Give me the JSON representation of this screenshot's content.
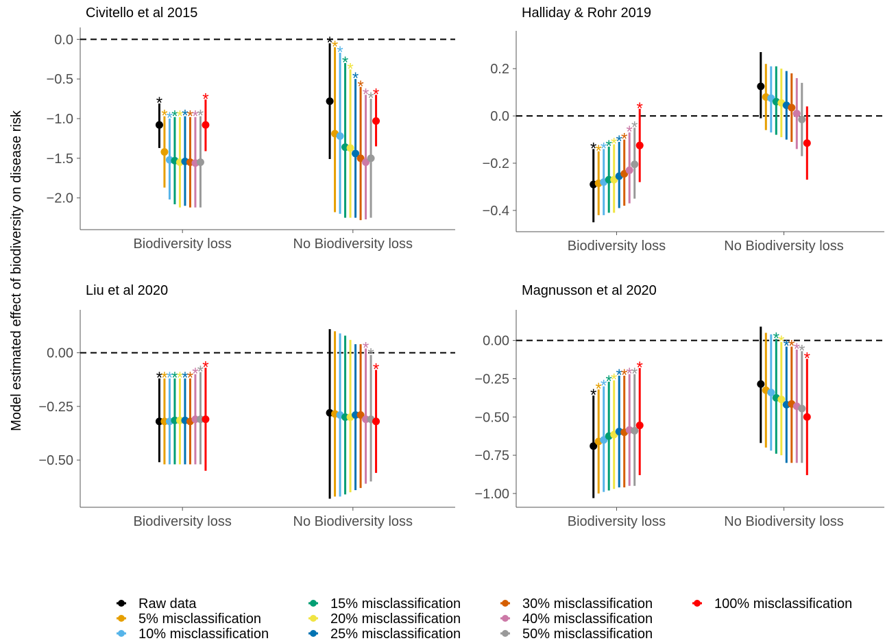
{
  "y_label": "Model estimated effect of biodiversity on disease risk",
  "legend": [
    {
      "name": "Raw data",
      "color": "#000000"
    },
    {
      "name": "5% misclassification",
      "color": "#E69F00"
    },
    {
      "name": "10% misclassification",
      "color": "#56B4E9"
    },
    {
      "name": "15% misclassification",
      "color": "#009E73"
    },
    {
      "name": "20% misclassification",
      "color": "#F0E442"
    },
    {
      "name": "25% misclassification",
      "color": "#0072B2"
    },
    {
      "name": "30% misclassification",
      "color": "#D55E00"
    },
    {
      "name": "40% misclassification",
      "color": "#CC79A7"
    },
    {
      "name": "50% misclassification",
      "color": "#999999"
    },
    {
      "name": "100% misclassification",
      "color": "#FF0000"
    }
  ],
  "chart_data": [
    {
      "type": "pointrange",
      "title": "Civitello et al 2015",
      "categories": [
        "Biodiversity loss",
        "No Biodiversity loss"
      ],
      "hline": 0,
      "ylim": [
        -2.4,
        0.15
      ],
      "yticks": [
        {
          "value": 0,
          "label": "0.0"
        },
        {
          "value": -0.5,
          "label": "−0.5"
        },
        {
          "value": -1,
          "label": "−1.0"
        },
        {
          "value": -1.5,
          "label": "−1.5"
        },
        {
          "value": -2,
          "label": "−2.0"
        }
      ],
      "series": [
        {
          "values": [
            -1.08,
            -0.78
          ],
          "lower": [
            -1.37,
            -1.51
          ],
          "upper": [
            -0.81,
            -0.05
          ],
          "labels": [
            "*",
            "*"
          ]
        },
        {
          "values": [
            -1.42,
            -1.19
          ],
          "lower": [
            -1.87,
            -2.18
          ],
          "upper": [
            -0.97,
            -0.1
          ],
          "labels": [
            "*",
            "*"
          ]
        },
        {
          "values": [
            -1.52,
            -1.22
          ],
          "lower": [
            -2.02,
            -2.2
          ],
          "upper": [
            -1.0,
            -0.17
          ],
          "labels": [
            "*",
            "*"
          ]
        },
        {
          "values": [
            -1.53,
            -1.36
          ],
          "lower": [
            -2.08,
            -2.25
          ],
          "upper": [
            -0.98,
            -0.3
          ],
          "labels": [
            "*",
            "*"
          ]
        },
        {
          "values": [
            -1.55,
            -1.37
          ],
          "lower": [
            -2.12,
            -2.25
          ],
          "upper": [
            -0.98,
            -0.38
          ],
          "labels": [
            "*",
            "*"
          ]
        },
        {
          "values": [
            -1.54,
            -1.44
          ],
          "lower": [
            -2.1,
            -2.25
          ],
          "upper": [
            -0.97,
            -0.5
          ],
          "labels": [
            "*",
            "*"
          ]
        },
        {
          "values": [
            -1.55,
            -1.5
          ],
          "lower": [
            -2.12,
            -2.28
          ],
          "upper": [
            -0.98,
            -0.6
          ],
          "labels": [
            "*",
            "*"
          ]
        },
        {
          "values": [
            -1.56,
            -1.55
          ],
          "lower": [
            -2.12,
            -2.27
          ],
          "upper": [
            -0.98,
            -0.7
          ],
          "labels": [
            "*",
            "*"
          ]
        },
        {
          "values": [
            -1.55,
            -1.5
          ],
          "lower": [
            -2.12,
            -2.25
          ],
          "upper": [
            -0.97,
            -0.75
          ],
          "labels": [
            "*",
            "*"
          ]
        },
        {
          "values": [
            -1.08,
            -1.03
          ],
          "lower": [
            -1.41,
            -1.35
          ],
          "upper": [
            -0.76,
            -0.7
          ],
          "labels": [
            "*",
            "*"
          ]
        }
      ]
    },
    {
      "type": "pointrange",
      "title": "Halliday & Rohr 2019",
      "categories": [
        "Biodiversity loss",
        "No Biodiversity loss"
      ],
      "hline": 0,
      "ylim": [
        -0.49,
        0.36
      ],
      "yticks": [
        0.2,
        {
          "value": 0,
          "label": "0.0"
        },
        {
          "value": -0.2,
          "label": "−0.2"
        },
        {
          "value": -0.4,
          "label": "−0.4"
        }
      ],
      "series": [
        {
          "values": [
            -0.29,
            0.125
          ],
          "lower": [
            -0.45,
            -0.01
          ],
          "upper": [
            -0.14,
            0.27
          ],
          "labels": [
            "*",
            null
          ]
        },
        {
          "values": [
            -0.285,
            0.08
          ],
          "lower": [
            -0.42,
            -0.06
          ],
          "upper": [
            -0.15,
            0.22
          ],
          "labels": [
            "*",
            null
          ]
        },
        {
          "values": [
            -0.28,
            0.075
          ],
          "lower": [
            -0.42,
            -0.07
          ],
          "upper": [
            -0.14,
            0.21
          ],
          "labels": [
            "*",
            null
          ]
        },
        {
          "values": [
            -0.27,
            0.06
          ],
          "lower": [
            -0.41,
            -0.08
          ],
          "upper": [
            -0.13,
            0.21
          ],
          "labels": [
            "*",
            null
          ]
        },
        {
          "values": [
            -0.27,
            0.055
          ],
          "lower": [
            -0.41,
            -0.09
          ],
          "upper": [
            -0.12,
            0.2
          ],
          "labels": [
            "*",
            null
          ]
        },
        {
          "values": [
            -0.255,
            0.045
          ],
          "lower": [
            -0.39,
            -0.1
          ],
          "upper": [
            -0.11,
            0.19
          ],
          "labels": [
            "*",
            null
          ]
        },
        {
          "values": [
            -0.245,
            0.035
          ],
          "lower": [
            -0.38,
            -0.11
          ],
          "upper": [
            -0.1,
            0.18
          ],
          "labels": [
            "*",
            null
          ]
        },
        {
          "values": [
            -0.23,
            0.01
          ],
          "lower": [
            -0.37,
            -0.14
          ],
          "upper": [
            -0.07,
            0.16
          ],
          "labels": [
            "*",
            null
          ]
        },
        {
          "values": [
            -0.205,
            -0.015
          ],
          "lower": [
            -0.35,
            -0.17
          ],
          "upper": [
            -0.05,
            0.14
          ],
          "labels": [
            "*",
            null
          ]
        },
        {
          "values": [
            -0.125,
            -0.115
          ],
          "lower": [
            -0.28,
            -0.27
          ],
          "upper": [
            0.03,
            0.04
          ],
          "labels": [
            "*",
            null
          ]
        }
      ]
    },
    {
      "type": "pointrange",
      "title": "Liu et al 2020",
      "categories": [
        "Biodiversity loss",
        "No Biodiversity loss"
      ],
      "hline": 0,
      "ylim": [
        -0.72,
        0.2
      ],
      "yticks": [
        {
          "value": 0,
          "label": "0.00"
        },
        {
          "value": -0.25,
          "label": "−0.25"
        },
        {
          "value": -0.5,
          "label": "−0.50"
        }
      ],
      "series": [
        {
          "values": [
            -0.32,
            -0.28
          ],
          "lower": [
            -0.51,
            -0.68
          ],
          "upper": [
            -0.12,
            0.11
          ],
          "labels": [
            "*",
            null
          ]
        },
        {
          "values": [
            -0.32,
            -0.285
          ],
          "lower": [
            -0.52,
            -0.67
          ],
          "upper": [
            -0.12,
            0.1
          ],
          "labels": [
            "*",
            null
          ]
        },
        {
          "values": [
            -0.32,
            -0.29
          ],
          "lower": [
            -0.52,
            -0.67
          ],
          "upper": [
            -0.12,
            0.09
          ],
          "labels": [
            "*",
            null
          ]
        },
        {
          "values": [
            -0.315,
            -0.3
          ],
          "lower": [
            -0.52,
            -0.66
          ],
          "upper": [
            -0.12,
            0.08
          ],
          "labels": [
            "*",
            null
          ]
        },
        {
          "values": [
            -0.315,
            -0.3
          ],
          "lower": [
            -0.52,
            -0.65
          ],
          "upper": [
            -0.12,
            0.06
          ],
          "labels": [
            "*",
            null
          ]
        },
        {
          "values": [
            -0.315,
            -0.29
          ],
          "lower": [
            -0.52,
            -0.64
          ],
          "upper": [
            -0.12,
            0.04
          ],
          "labels": [
            "*",
            null
          ]
        },
        {
          "values": [
            -0.32,
            -0.29
          ],
          "lower": [
            -0.52,
            -0.63
          ],
          "upper": [
            -0.12,
            0.04
          ],
          "labels": [
            "*",
            null
          ]
        },
        {
          "values": [
            -0.31,
            -0.31
          ],
          "lower": [
            -0.52,
            -0.61
          ],
          "upper": [
            -0.1,
            0.02
          ],
          "labels": [
            "*",
            "*"
          ]
        },
        {
          "values": [
            -0.31,
            -0.31
          ],
          "lower": [
            -0.52,
            -0.6
          ],
          "upper": [
            -0.09,
            -0.01
          ],
          "labels": [
            "*",
            "*"
          ]
        },
        {
          "values": [
            -0.31,
            -0.32
          ],
          "lower": [
            -0.55,
            -0.56
          ],
          "upper": [
            -0.07,
            -0.08
          ],
          "labels": [
            "*",
            "*"
          ]
        }
      ]
    },
    {
      "type": "pointrange",
      "title": "Magnusson et al 2020",
      "categories": [
        "Biodiversity loss",
        "No Biodiversity loss"
      ],
      "hline": 0,
      "ylim": [
        -1.09,
        0.2
      ],
      "yticks": [
        {
          "value": 0,
          "label": "0.00"
        },
        {
          "value": -0.25,
          "label": "−0.25"
        },
        {
          "value": -0.5,
          "label": "−0.50"
        },
        {
          "value": -0.75,
          "label": "−0.75"
        },
        {
          "value": -1,
          "label": "−1.00"
        }
      ],
      "series": [
        {
          "values": [
            -0.69,
            -0.285
          ],
          "lower": [
            -1.03,
            -0.67
          ],
          "upper": [
            -0.36,
            0.09
          ],
          "labels": [
            "*",
            null
          ]
        },
        {
          "values": [
            -0.66,
            -0.325
          ],
          "lower": [
            -1.0,
            -0.7
          ],
          "upper": [
            -0.32,
            0.05
          ],
          "labels": [
            "*",
            null
          ]
        },
        {
          "values": [
            -0.65,
            -0.34
          ],
          "lower": [
            -0.99,
            -0.72
          ],
          "upper": [
            -0.3,
            0.04
          ],
          "labels": [
            "*",
            null
          ]
        },
        {
          "values": [
            -0.625,
            -0.375
          ],
          "lower": [
            -0.98,
            -0.74
          ],
          "upper": [
            -0.27,
            0.01
          ],
          "labels": [
            "*",
            "*"
          ]
        },
        {
          "values": [
            -0.615,
            -0.385
          ],
          "lower": [
            -0.97,
            -0.75
          ],
          "upper": [
            -0.26,
            -0.01
          ],
          "labels": [
            "*",
            "*"
          ]
        },
        {
          "values": [
            -0.595,
            -0.42
          ],
          "lower": [
            -0.96,
            -0.8
          ],
          "upper": [
            -0.23,
            -0.04
          ],
          "labels": [
            "*",
            "*"
          ]
        },
        {
          "values": [
            -0.6,
            -0.415
          ],
          "lower": [
            -0.96,
            -0.8
          ],
          "upper": [
            -0.23,
            -0.04
          ],
          "labels": [
            "*",
            "*"
          ]
        },
        {
          "values": [
            -0.585,
            -0.43
          ],
          "lower": [
            -0.95,
            -0.8
          ],
          "upper": [
            -0.22,
            -0.06
          ],
          "labels": [
            "*",
            "*"
          ]
        },
        {
          "values": [
            -0.59,
            -0.445
          ],
          "lower": [
            -0.95,
            -0.8
          ],
          "upper": [
            -0.22,
            -0.07
          ],
          "labels": [
            "*",
            "*"
          ]
        },
        {
          "values": [
            -0.555,
            -0.5
          ],
          "lower": [
            -0.88,
            -0.88
          ],
          "upper": [
            -0.18,
            -0.12
          ],
          "labels": [
            "*",
            "*"
          ]
        }
      ]
    }
  ]
}
